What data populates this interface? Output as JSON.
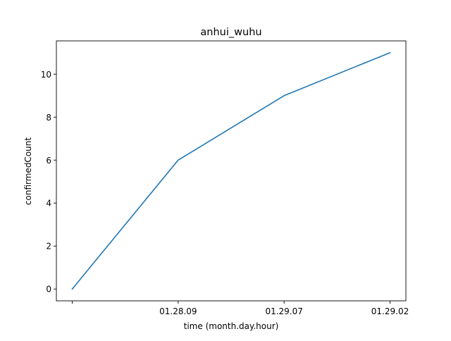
{
  "chart_data": {
    "type": "line",
    "title": "anhui_wuhu",
    "xlabel": "time (month.day.hour)",
    "ylabel": "confirmedCount",
    "categories": [
      "",
      "01.28.09",
      "01.29.07",
      "01.29.02"
    ],
    "series": [
      {
        "values": [
          0,
          6,
          9,
          11
        ],
        "color": "#1f77b4"
      }
    ],
    "ylim": [
      -0.55,
      11.55
    ],
    "yticks": [
      0,
      2,
      4,
      6,
      8,
      10
    ],
    "grid": false,
    "legend": "none"
  }
}
